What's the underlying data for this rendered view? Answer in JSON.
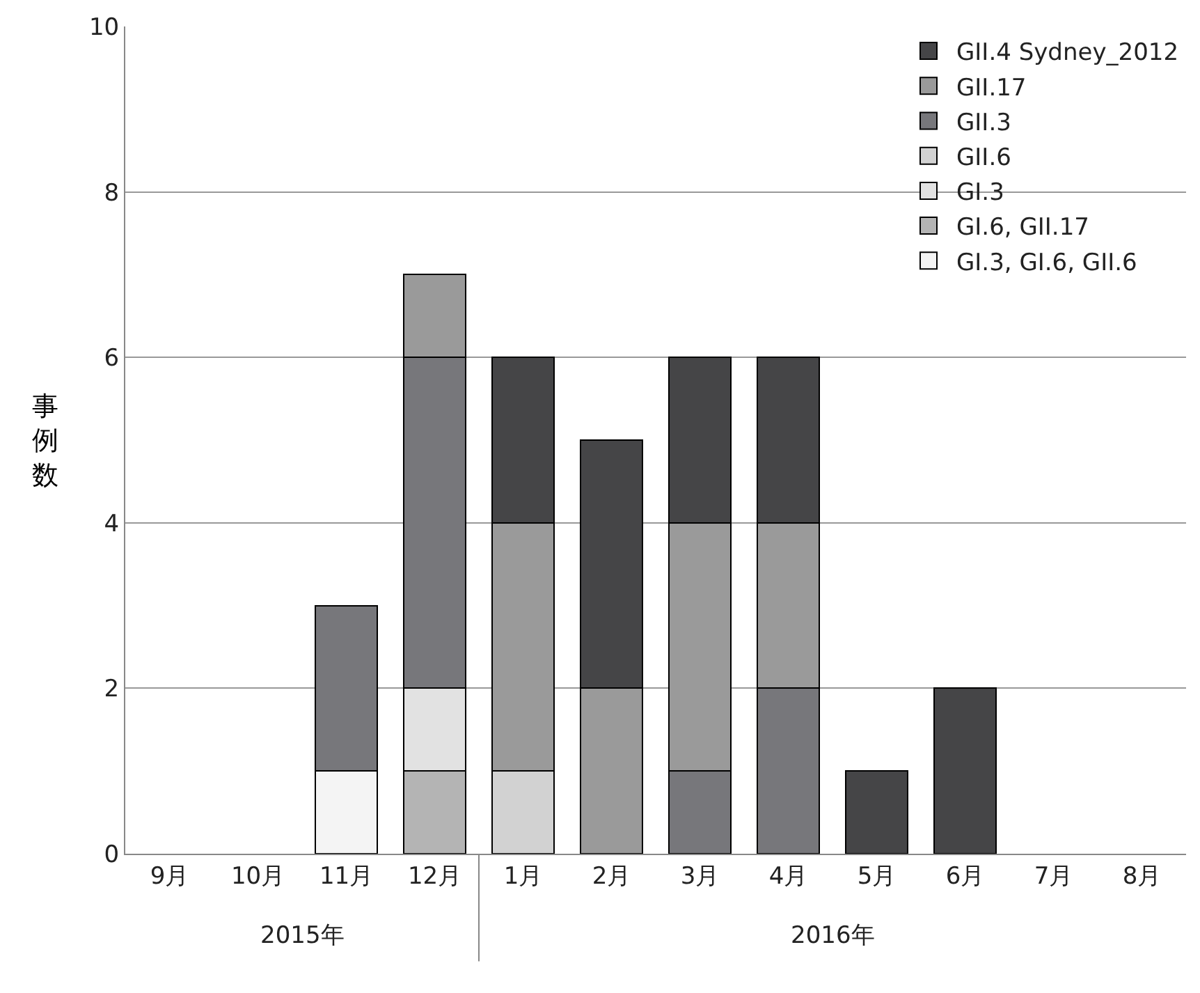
{
  "chart_data": {
    "type": "bar",
    "stacked": true,
    "ylabel": "事例数",
    "categories": [
      "9月",
      "10月",
      "11月",
      "12月",
      "1月",
      "2月",
      "3月",
      "4月",
      "5月",
      "6月",
      "7月",
      "8月"
    ],
    "series": [
      {
        "name": "GI.3, GI.6, GII.6",
        "color": "#f4f4f4",
        "values": [
          null,
          null,
          1,
          null,
          null,
          null,
          null,
          null,
          null,
          null,
          null,
          null
        ]
      },
      {
        "name": "GI.6, GII.17",
        "color": "#b4b4b4",
        "values": [
          null,
          null,
          null,
          1,
          null,
          null,
          null,
          null,
          null,
          null,
          null,
          null
        ]
      },
      {
        "name": "GI.3",
        "color": "#e2e2e2",
        "values": [
          null,
          null,
          null,
          1,
          null,
          null,
          null,
          null,
          null,
          null,
          null,
          null
        ]
      },
      {
        "name": "GII.6",
        "color": "#d2d2d2",
        "values": [
          null,
          null,
          null,
          null,
          1,
          null,
          null,
          null,
          null,
          null,
          null,
          null
        ]
      },
      {
        "name": "GII.3",
        "color": "#77777b",
        "values": [
          null,
          null,
          2,
          4,
          null,
          null,
          1,
          2,
          null,
          null,
          null,
          null
        ]
      },
      {
        "name": "GII.17",
        "color": "#9a9a9a",
        "values": [
          null,
          null,
          null,
          1,
          3,
          2,
          3,
          2,
          null,
          null,
          null,
          null
        ]
      },
      {
        "name": "GII.4 Sydney_2012",
        "color": "#454547",
        "values": [
          null,
          null,
          null,
          null,
          2,
          3,
          2,
          2,
          1,
          2,
          null,
          null
        ]
      }
    ],
    "ylim": [
      0,
      10
    ],
    "yticks": [
      0,
      2,
      4,
      6,
      8,
      10
    ],
    "grid": "y",
    "legend": "top right",
    "annotations": [
      "2015年",
      "2016年"
    ]
  }
}
